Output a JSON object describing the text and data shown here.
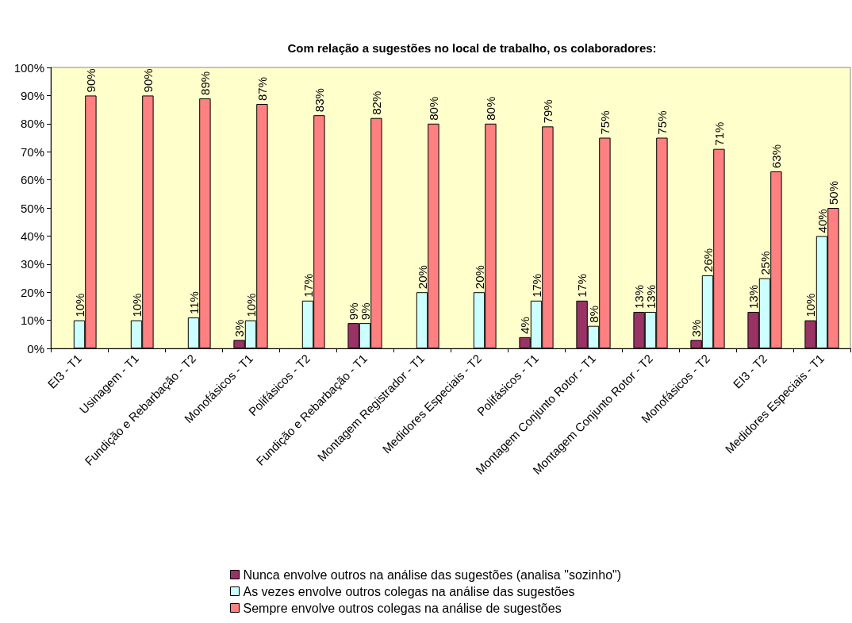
{
  "chart_data": {
    "type": "bar",
    "title": "Com relação a sugestões no local de trabalho, os colaboradores:",
    "categories": [
      "EI3 - T1",
      "Usinagem - T1",
      "Fundição e Rebarbação - T2",
      "Monofásicos - T1",
      "Polifásicos - T2",
      "Fundição e Rebarbação - T1",
      "Montagem Registrador - T1",
      "Medidores Especiais - T2",
      "Polifásicos - T1",
      "Montagem Conjunto Rotor - T1",
      "Montagem Conjunto Rotor - T2",
      "Monofásicos - T2",
      "EI3 - T2",
      "Medidores Especiais - T1"
    ],
    "series": [
      {
        "name": "Nunca envolve outros na análise das sugestões (analisa \"sozinho\")",
        "color": "#993366",
        "values": [
          null,
          null,
          null,
          3,
          null,
          9,
          null,
          null,
          4,
          17,
          13,
          3,
          13,
          10
        ],
        "value_labels": [
          null,
          null,
          null,
          "3%",
          null,
          "9%",
          null,
          null,
          "4%",
          "17%",
          "13%",
          "3%",
          "13%",
          "10%"
        ]
      },
      {
        "name": "As vezes envolve outros colegas na análise das sugestões",
        "color": "#ccffff",
        "values": [
          10,
          10,
          11,
          10,
          17,
          9,
          20,
          20,
          17,
          8,
          13,
          26,
          25,
          40
        ],
        "value_labels": [
          "10%",
          "10%",
          "11%",
          "10%",
          "17%",
          "9%",
          "20%",
          "20%",
          "17%",
          "8%",
          "13%",
          "26%",
          "25%",
          "40%"
        ]
      },
      {
        "name": "Sempre envolve outros colegas na análise de sugestões",
        "color": "#ff8080",
        "values": [
          90,
          90,
          89,
          87,
          83,
          82,
          80,
          80,
          79,
          75,
          75,
          71,
          63,
          50
        ],
        "value_labels": [
          "90%",
          "90%",
          "89%",
          "87%",
          "83%",
          "82%",
          "80%",
          "80%",
          "79%",
          "75%",
          "75%",
          "71%",
          "63%",
          "50%"
        ]
      }
    ],
    "ylim": [
      0,
      100
    ],
    "yticks": [
      {
        "value": 0,
        "label": "0%"
      },
      {
        "value": 10,
        "label": "10%"
      },
      {
        "value": 20,
        "label": "20%"
      },
      {
        "value": 30,
        "label": "30%"
      },
      {
        "value": 40,
        "label": "40%"
      },
      {
        "value": 50,
        "label": "50%"
      },
      {
        "value": 60,
        "label": "60%"
      },
      {
        "value": 70,
        "label": "70%"
      },
      {
        "value": 80,
        "label": "80%"
      },
      {
        "value": 90,
        "label": "90%"
      },
      {
        "value": 100,
        "label": "100%"
      }
    ],
    "grid": false,
    "legend": "bottom"
  }
}
